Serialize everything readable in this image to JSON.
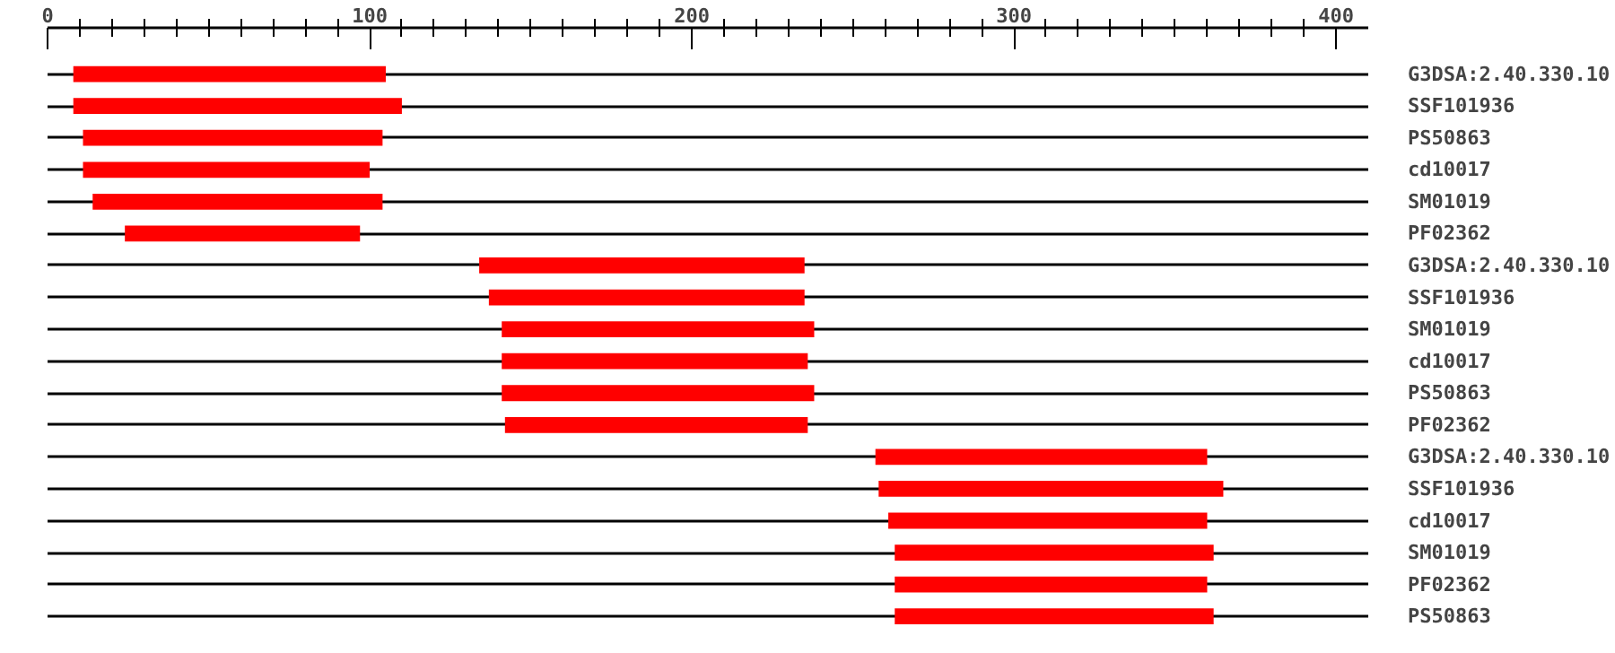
{
  "chart_data": {
    "type": "bar",
    "orientation": "horizontal",
    "categories": [
      "G3DSA:2.40.330.10",
      "SSF101936",
      "PS50863",
      "cd10017",
      "SM01019",
      "PF02362",
      "G3DSA:2.40.330.10",
      "SSF101936",
      "SM01019",
      "cd10017",
      "PS50863",
      "PF02362",
      "G3DSA:2.40.330.10",
      "SSF101936",
      "cd10017",
      "SM01019",
      "PF02362",
      "PS50863"
    ],
    "base": [
      8,
      8,
      11,
      11,
      14,
      24,
      134,
      137,
      141,
      141,
      141,
      142,
      257,
      258,
      261,
      263,
      263,
      263
    ],
    "values": [
      97,
      102,
      93,
      89,
      90,
      73,
      101,
      98,
      97,
      95,
      97,
      94,
      103,
      107,
      99,
      99,
      97,
      99
    ],
    "color": "#ff0000",
    "xlim": [
      0,
      410
    ],
    "xticks": [
      0,
      {
        "value": 10,
        "label": null
      },
      {
        "value": 20,
        "label": null
      },
      {
        "value": 30,
        "label": null
      },
      {
        "value": 40,
        "label": null
      },
      {
        "value": 50,
        "label": null
      },
      {
        "value": 60,
        "label": null
      },
      {
        "value": 70,
        "label": null
      },
      {
        "value": 80,
        "label": null
      },
      {
        "value": 90,
        "label": null
      },
      100,
      {
        "value": 110,
        "label": null
      },
      {
        "value": 120,
        "label": null
      },
      {
        "value": 130,
        "label": null
      },
      {
        "value": 140,
        "label": null
      },
      {
        "value": 150,
        "label": null
      },
      {
        "value": 160,
        "label": null
      },
      {
        "value": 170,
        "label": null
      },
      {
        "value": 180,
        "label": null
      },
      {
        "value": 190,
        "label": null
      },
      200,
      {
        "value": 210,
        "label": null
      },
      {
        "value": 220,
        "label": null
      },
      {
        "value": 230,
        "label": null
      },
      {
        "value": 240,
        "label": null
      },
      {
        "value": 250,
        "label": null
      },
      {
        "value": 260,
        "label": null
      },
      {
        "value": 270,
        "label": null
      },
      {
        "value": 280,
        "label": null
      },
      {
        "value": 290,
        "label": null
      },
      300,
      {
        "value": 310,
        "label": null
      },
      {
        "value": 320,
        "label": null
      },
      {
        "value": 330,
        "label": null
      },
      {
        "value": 340,
        "label": null
      },
      {
        "value": 350,
        "label": null
      },
      {
        "value": 360,
        "label": null
      },
      {
        "value": 370,
        "label": null
      },
      {
        "value": 380,
        "label": null
      },
      {
        "value": 390,
        "label": null
      },
      400
    ],
    "grid": "y"
  }
}
